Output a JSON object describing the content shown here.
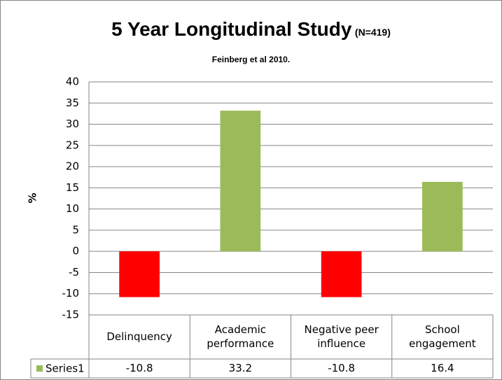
{
  "chart_data": {
    "type": "bar",
    "title": "5 Year Longitudinal Study",
    "title_note": "(N=419)",
    "subtitle": "Feinberg et al 2010.",
    "y_label": "%",
    "categories": [
      "Delinquency",
      "Academic performance",
      "Negative peer influence",
      "School engagement"
    ],
    "series": [
      {
        "name": "Series1",
        "color": "#9bbb59",
        "values": [
          -10.8,
          33.2,
          -10.8,
          16.4
        ],
        "colors": [
          "#ff0000",
          "#9bbb59",
          "#ff0000",
          "#9bbb59"
        ]
      }
    ],
    "ylim": [
      -15,
      40
    ],
    "yticks": [
      -15,
      -10,
      -5,
      0,
      5,
      10,
      15,
      20,
      25,
      30,
      35,
      40
    ],
    "grid": true,
    "data_table": true
  }
}
